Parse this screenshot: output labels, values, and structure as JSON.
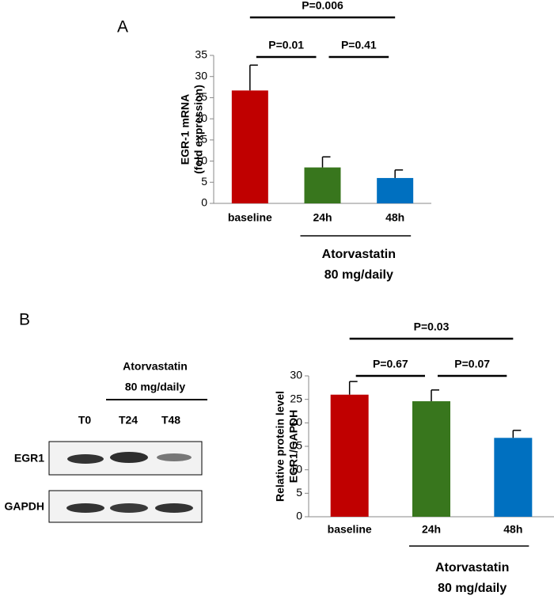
{
  "panel_labels": [
    "A",
    "B"
  ],
  "blot": {
    "treatment": [
      "Atorvastatin",
      "80 mg/daily"
    ],
    "lanes": [
      "T0",
      "T24",
      "T48"
    ],
    "rows": [
      "EGR1",
      "GAPDH"
    ]
  },
  "chart_data": [
    {
      "type": "bar",
      "ylabel": [
        "EGR-1 mRNA",
        "(fold expression)"
      ],
      "categories": [
        "baseline",
        "24h",
        "48h"
      ],
      "values": [
        26.7,
        8.5,
        6.0
      ],
      "errors": [
        6.0,
        2.5,
        1.9
      ],
      "colors": [
        "#c00000",
        "#38761d",
        "#0070c0"
      ],
      "ylim": [
        0,
        35
      ],
      "yticks": [
        0,
        5,
        10,
        15,
        20,
        25,
        30,
        35
      ],
      "comparisons": [
        {
          "between": [
            "baseline",
            "48h"
          ],
          "label": "P=0.006"
        },
        {
          "between": [
            "baseline",
            "24h"
          ],
          "label": "P=0.01"
        },
        {
          "between": [
            "24h",
            "48h"
          ],
          "label": "P=0.41"
        }
      ],
      "group": {
        "label": [
          "Atorvastatin",
          "80 mg/daily"
        ],
        "categories": [
          "24h",
          "48h"
        ]
      }
    },
    {
      "type": "bar",
      "ylabel": [
        "Relative protein level",
        "EGR1/GAPDH"
      ],
      "categories": [
        "baseline",
        "24h",
        "48h"
      ],
      "values": [
        26.0,
        24.6,
        16.8
      ],
      "errors": [
        2.8,
        2.4,
        1.6
      ],
      "colors": [
        "#c00000",
        "#38761d",
        "#0070c0"
      ],
      "ylim": [
        0,
        30
      ],
      "yticks": [
        0,
        5,
        10,
        15,
        20,
        25,
        30
      ],
      "comparisons": [
        {
          "between": [
            "baseline",
            "48h"
          ],
          "label": "P=0.03"
        },
        {
          "between": [
            "baseline",
            "24h"
          ],
          "label": "P=0.67"
        },
        {
          "between": [
            "24h",
            "48h"
          ],
          "label": "P=0.07"
        }
      ],
      "group": {
        "label": [
          "Atorvastatin",
          "80 mg/daily"
        ],
        "categories": [
          "24h",
          "48h"
        ]
      }
    }
  ]
}
